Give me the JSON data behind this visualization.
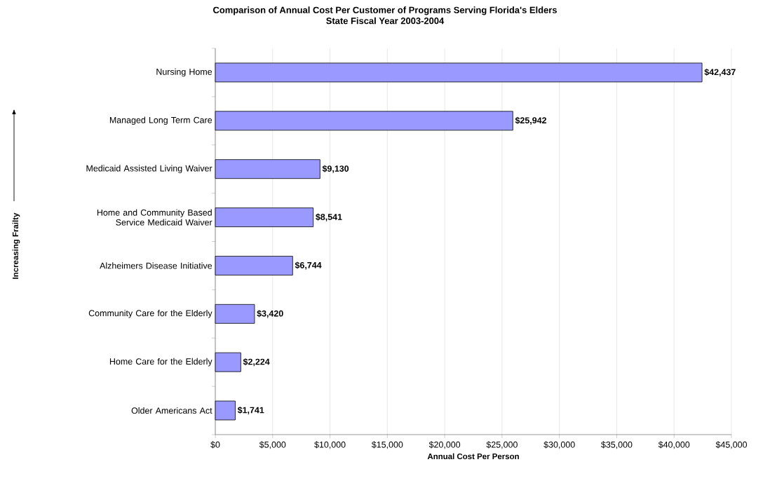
{
  "chart_data": {
    "type": "bar",
    "orientation": "horizontal",
    "title": "Comparison of Annual Cost Per Customer of Programs Serving Florida's Elders",
    "subtitle": "State Fiscal Year 2003-2004",
    "xlabel": "Annual Cost Per Person",
    "annotations": [
      "Increasing Frailty"
    ],
    "categories": [
      "Nursing Home",
      "Managed Long Term Care",
      "Medicaid Assisted Living Waiver",
      "Home and Community Based Service Medicaid Waiver",
      "Alzheimers Disease Initiative",
      "Community Care for the Elderly",
      "Home Care for the Elderly",
      "Older Americans Act"
    ],
    "values": [
      42437,
      25942,
      9130,
      8541,
      6744,
      3420,
      2224,
      1741
    ],
    "value_labels": [
      "$42,437",
      "$25,942",
      "$9,130",
      "$8,541",
      "$6,744",
      "$3,420",
      "$2,224",
      "$1,741"
    ],
    "color": "#9999ff",
    "xlim": [
      0,
      45000
    ],
    "xticks": [
      {
        "value": 0,
        "label": "$0"
      },
      {
        "value": 5000,
        "label": "$5,000"
      },
      {
        "value": 10000,
        "label": "$10,000"
      },
      {
        "value": 15000,
        "label": "$15,000"
      },
      {
        "value": 20000,
        "label": "$20,000"
      },
      {
        "value": 25000,
        "label": "$25,000"
      },
      {
        "value": 30000,
        "label": "$30,000"
      },
      {
        "value": 35000,
        "label": "$35,000"
      },
      {
        "value": 40000,
        "label": "$40,000"
      },
      {
        "value": 45000,
        "label": "$45,000"
      }
    ],
    "grid": "x"
  }
}
